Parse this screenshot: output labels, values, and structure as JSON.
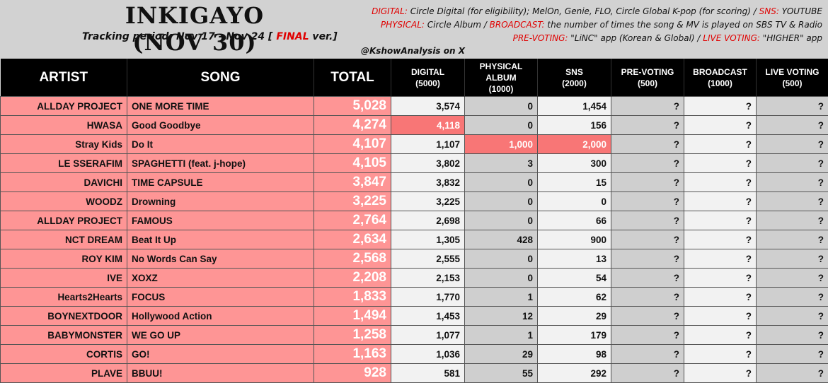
{
  "header": {
    "title": "INKIGAYO (NOV 30)",
    "tracking_prefix": "Tracking period: Nov 17 - Nov 24 [ ",
    "tracking_final": "FINAL",
    "tracking_suffix": " ver.]",
    "handle": "@KshowAnalysis on X",
    "sources": {
      "line1_k1": "DIGITAL:",
      "line1_t1": " Circle Digital (for eligibility); MelOn, Genie, FLO, Circle Global K-pop (for scoring) / ",
      "line1_k2": "SNS:",
      "line1_t2": " YOUTUBE",
      "line2_k1": "PHYSICAL:",
      "line2_t1": " Circle Album / ",
      "line2_k2": "BROADCAST:",
      "line2_t2": " the number of times the song & MV is played on SBS TV & Radio",
      "line3_k1": "PRE-VOTING:",
      "line3_t1": " \"LiNC\" app (Korean & Global) / ",
      "line3_k2": "LIVE VOTING:",
      "line3_t2": " \"HIGHER\" app"
    }
  },
  "columns": {
    "artist": "ARTIST",
    "song": "SONG",
    "total": "TOTAL",
    "digital": "DIGITAL",
    "digital_max": "(5000)",
    "physical_1": "PHYSICAL",
    "physical_2": "ALBUM",
    "physical_max": "(1000)",
    "sns": "SNS",
    "sns_max": "(2000)",
    "prevoting": "PRE-VOTING",
    "prevoting_max": "(500)",
    "broadcast": "BROADCAST",
    "broadcast_max": "(1000)",
    "live": "LIVE VOTING",
    "live_max": "(500)"
  },
  "rows": [
    {
      "artist": "ALLDAY PROJECT",
      "song": "ONE MORE TIME",
      "total": "5,028",
      "digital": "3,574",
      "physical": "0",
      "sns": "1,454",
      "pre": "?",
      "broadcast": "?",
      "live": "?"
    },
    {
      "artist": "HWASA",
      "song": "Good Goodbye",
      "total": "4,274",
      "digital": "4,118",
      "physical": "0",
      "sns": "156",
      "pre": "?",
      "broadcast": "?",
      "live": "?"
    },
    {
      "artist": "Stray Kids",
      "song": "Do It",
      "total": "4,107",
      "digital": "1,107",
      "physical": "1,000",
      "sns": "2,000",
      "pre": "?",
      "broadcast": "?",
      "live": "?"
    },
    {
      "artist": "LE SSERAFIM",
      "song": "SPAGHETTI (feat. j-hope)",
      "total": "4,105",
      "digital": "3,802",
      "physical": "3",
      "sns": "300",
      "pre": "?",
      "broadcast": "?",
      "live": "?"
    },
    {
      "artist": "DAVICHI",
      "song": "TIME CAPSULE",
      "total": "3,847",
      "digital": "3,832",
      "physical": "0",
      "sns": "15",
      "pre": "?",
      "broadcast": "?",
      "live": "?"
    },
    {
      "artist": "WOODZ",
      "song": "Drowning",
      "total": "3,225",
      "digital": "3,225",
      "physical": "0",
      "sns": "0",
      "pre": "?",
      "broadcast": "?",
      "live": "?"
    },
    {
      "artist": "ALLDAY PROJECT",
      "song": "FAMOUS",
      "total": "2,764",
      "digital": "2,698",
      "physical": "0",
      "sns": "66",
      "pre": "?",
      "broadcast": "?",
      "live": "?"
    },
    {
      "artist": "NCT DREAM",
      "song": "Beat It Up",
      "total": "2,634",
      "digital": "1,305",
      "physical": "428",
      "sns": "900",
      "pre": "?",
      "broadcast": "?",
      "live": "?"
    },
    {
      "artist": "ROY KIM",
      "song": "No Words Can Say",
      "total": "2,568",
      "digital": "2,555",
      "physical": "0",
      "sns": "13",
      "pre": "?",
      "broadcast": "?",
      "live": "?"
    },
    {
      "artist": "IVE",
      "song": "XOXZ",
      "total": "2,208",
      "digital": "2,153",
      "physical": "0",
      "sns": "54",
      "pre": "?",
      "broadcast": "?",
      "live": "?"
    },
    {
      "artist": "Hearts2Hearts",
      "song": "FOCUS",
      "total": "1,833",
      "digital": "1,770",
      "physical": "1",
      "sns": "62",
      "pre": "?",
      "broadcast": "?",
      "live": "?"
    },
    {
      "artist": "BOYNEXTDOOR",
      "song": "Hollywood Action",
      "total": "1,494",
      "digital": "1,453",
      "physical": "12",
      "sns": "29",
      "pre": "?",
      "broadcast": "?",
      "live": "?"
    },
    {
      "artist": "BABYMONSTER",
      "song": "WE GO UP",
      "total": "1,258",
      "digital": "1,077",
      "physical": "1",
      "sns": "179",
      "pre": "?",
      "broadcast": "?",
      "live": "?"
    },
    {
      "artist": "CORTIS",
      "song": "GO!",
      "total": "1,163",
      "digital": "1,036",
      "physical": "29",
      "sns": "98",
      "pre": "?",
      "broadcast": "?",
      "live": "?"
    },
    {
      "artist": "PLAVE",
      "song": "BBUU!",
      "total": "928",
      "digital": "581",
      "physical": "55",
      "sns": "292",
      "pre": "?",
      "broadcast": "?",
      "live": "?"
    }
  ],
  "colors": {
    "header_bg": "#000000",
    "name_cell": "#fe9595",
    "highlight": "#f87676",
    "accent_red": "#e00000",
    "light_cell": "#f2f2f2",
    "grey_cell": "#cfcfcf"
  },
  "highlights": [
    {
      "row": 1,
      "col": "digital"
    },
    {
      "row": 2,
      "col": "physical"
    },
    {
      "row": 2,
      "col": "sns"
    }
  ]
}
